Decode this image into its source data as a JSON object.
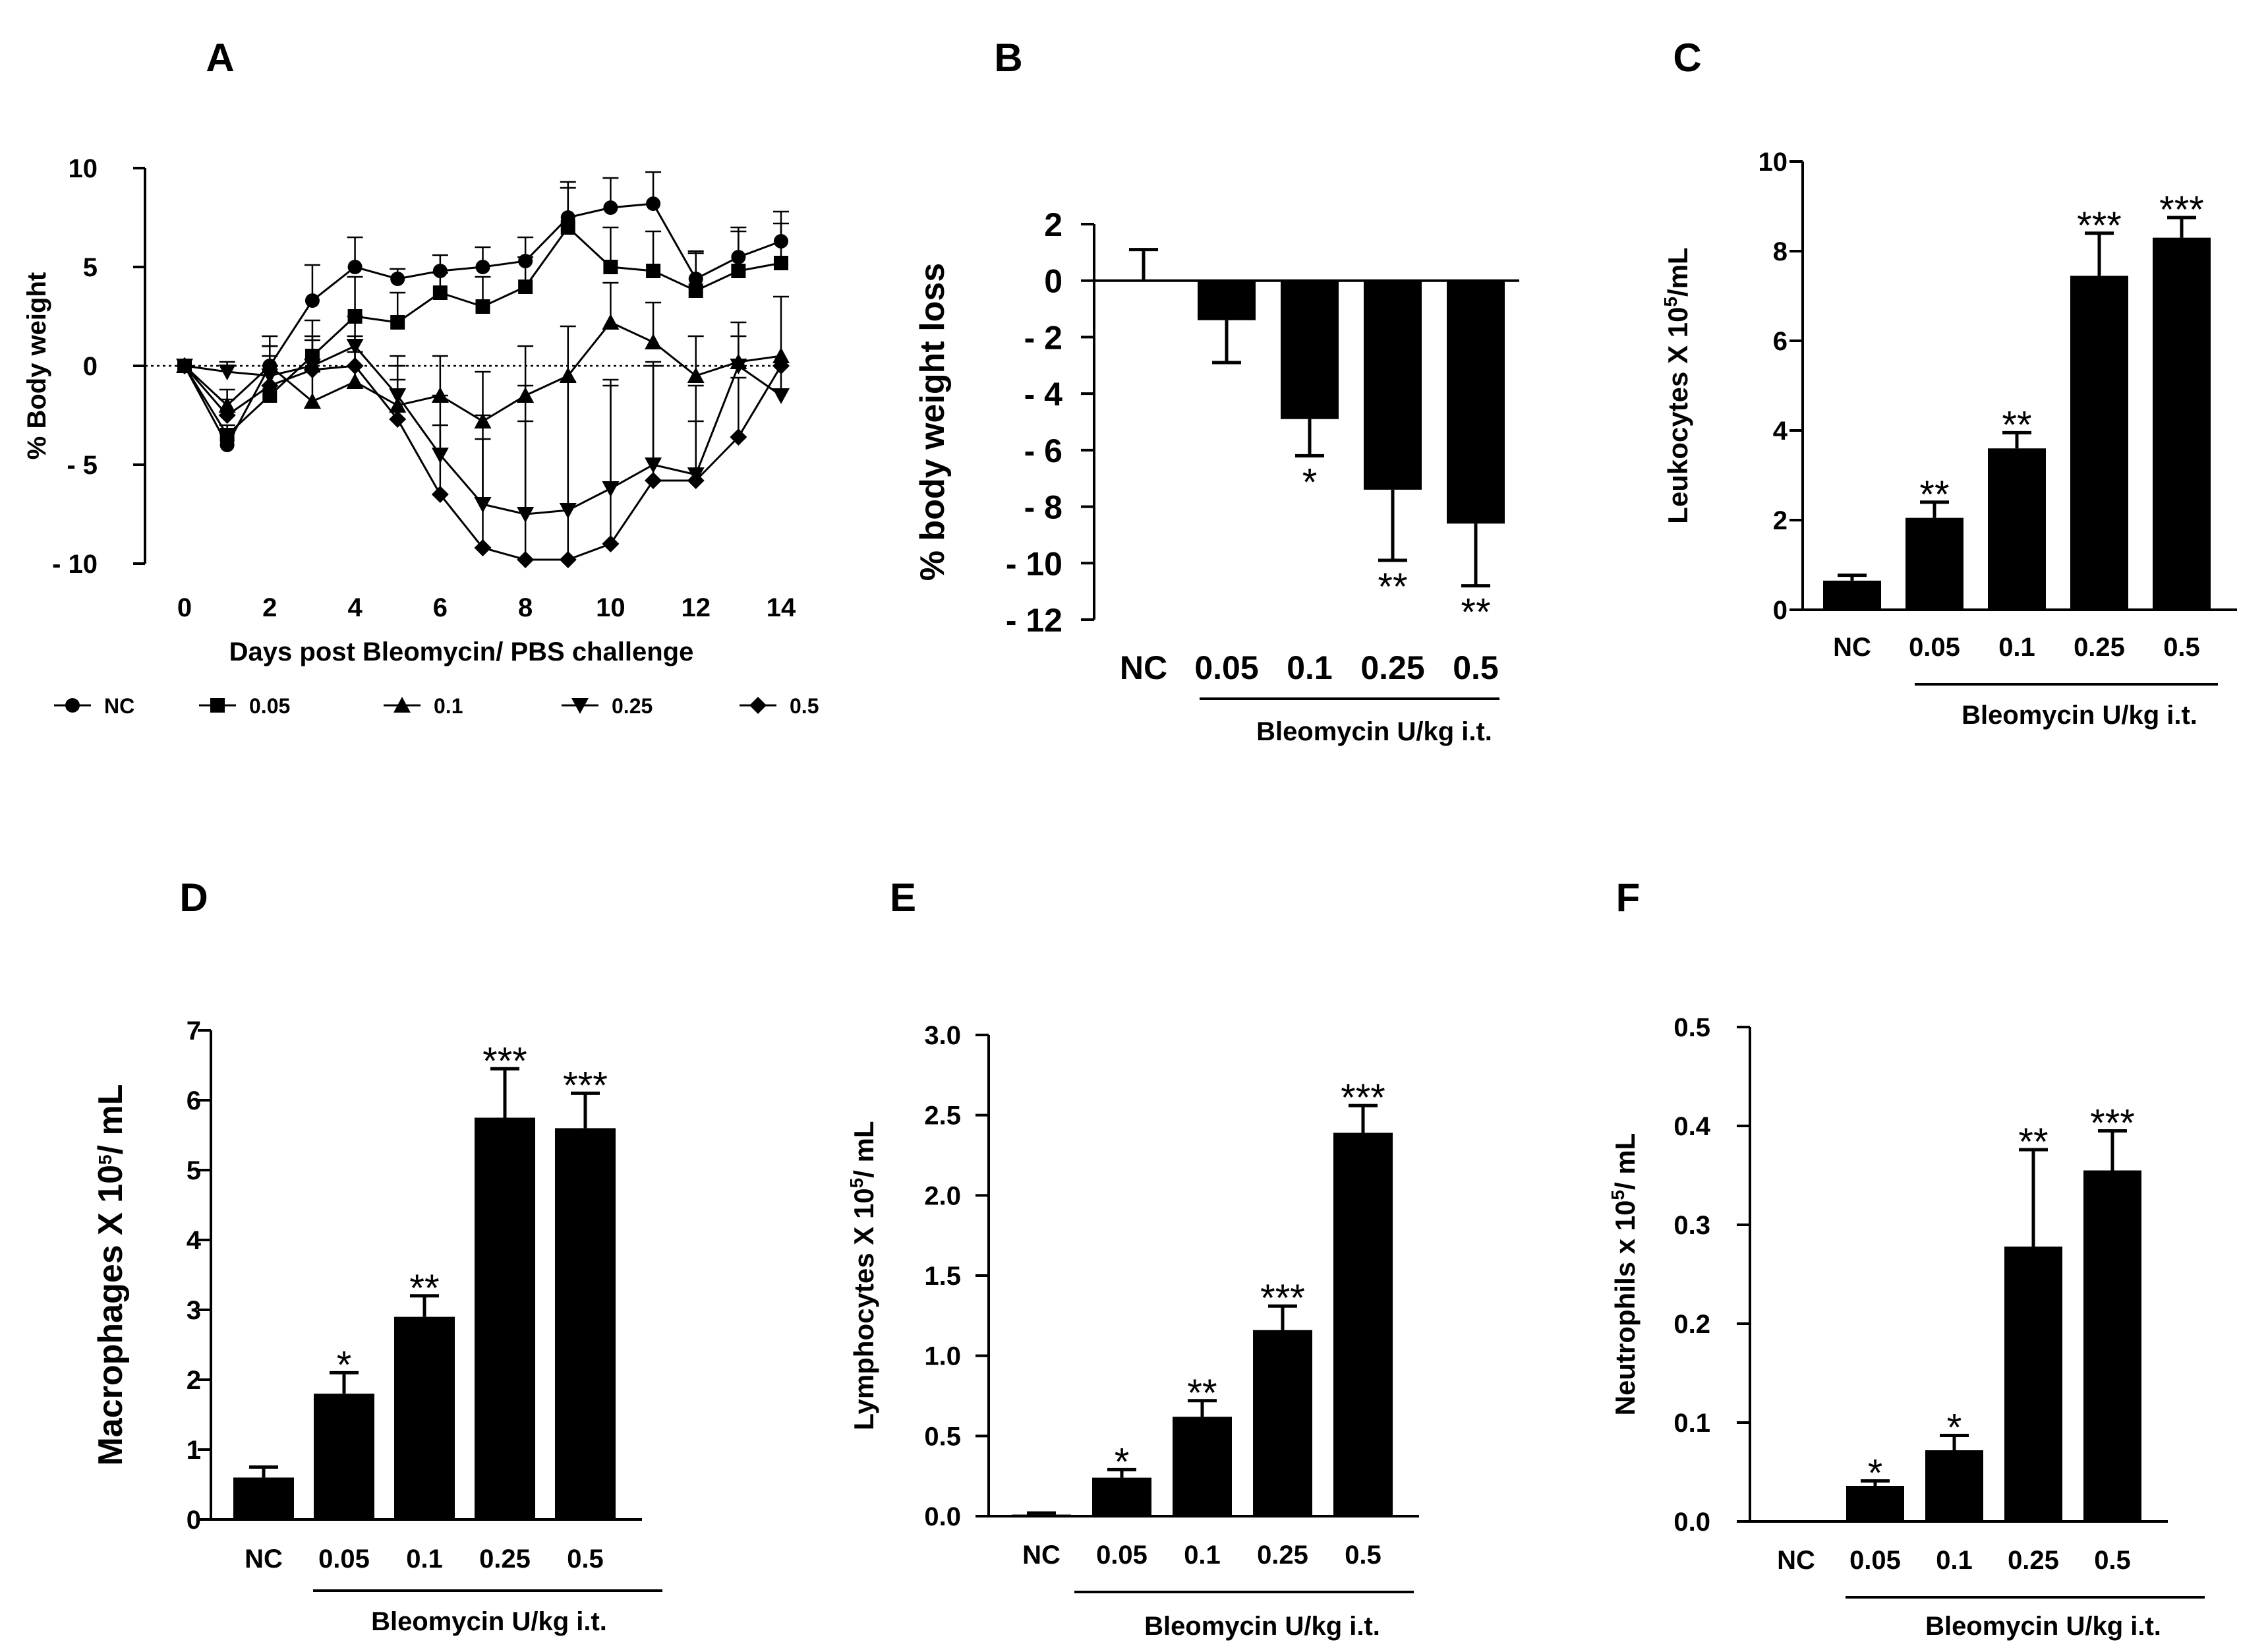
{
  "chart_data": [
    {
      "panel": "A",
      "type": "line",
      "ylabel": "% Body weight",
      "xlabel": "Days post Bleomycin/ PBS challenge",
      "ylim": [
        -10,
        10
      ],
      "xlim": [
        0,
        14
      ],
      "yticks": [
        {
          "v": 10,
          "t": "10"
        },
        {
          "v": 5,
          "t": "5"
        },
        {
          "v": 0,
          "t": "0"
        },
        {
          "v": -5,
          "t": "- 5"
        },
        {
          "v": -10,
          "t": "- 10"
        }
      ],
      "xticks": [
        "0",
        "2",
        "4",
        "6",
        "8",
        "10",
        "12",
        "14"
      ],
      "x": [
        0,
        1,
        2,
        3,
        4,
        5,
        6,
        7,
        8,
        9,
        10,
        11,
        12,
        13,
        14
      ],
      "series": [
        {
          "name": "NC",
          "marker": "circle",
          "values": [
            0,
            -4,
            0,
            3.3,
            5,
            4.4,
            4.8,
            5,
            5.3,
            7.5,
            8,
            8.2,
            4.4,
            5.5,
            6.3
          ],
          "errors": [
            0,
            0.6,
            1,
            1.8,
            1.5,
            0.5,
            0.8,
            1,
            1.2,
            1.8,
            1.5,
            1.6,
            1.3,
            1.5,
            1.5
          ]
        },
        {
          "name": "0.05",
          "marker": "square",
          "values": [
            0,
            -3.5,
            -1.5,
            0.5,
            2.5,
            2.2,
            3.7,
            3,
            4,
            7,
            5,
            4.8,
            3.8,
            4.8,
            5.2
          ],
          "errors": [
            0,
            0.5,
            1.5,
            1.8,
            2,
            1.5,
            1,
            1.5,
            1.5,
            2,
            2,
            2,
            2,
            2,
            2
          ]
        },
        {
          "name": "0.1",
          "marker": "triangle-up",
          "values": [
            0,
            -2,
            0,
            -1.8,
            -0.8,
            -2,
            -1.5,
            -2.8,
            -1.5,
            -0.5,
            2.2,
            1.2,
            -0.5,
            0.2,
            0.5
          ],
          "errors": [
            0,
            0.8,
            1.5,
            1.5,
            1.5,
            2,
            2,
            2.5,
            2.5,
            2.5,
            2,
            2,
            2,
            2,
            3
          ]
        },
        {
          "name": "0.25",
          "marker": "triangle-down",
          "values": [
            0,
            -0.3,
            -0.5,
            0,
            1,
            -1.5,
            -4.5,
            -7,
            -7.5,
            -7.3,
            -6.2,
            -5,
            -5.5,
            0,
            -1.5
          ],
          "errors": [
            0,
            0.5,
            1.5,
            1.5,
            1.5,
            2,
            3,
            4.5,
            6.5,
            6.5,
            5.5,
            5,
            4.5,
            1.5,
            1.5
          ]
        },
        {
          "name": "0.5",
          "marker": "diamond",
          "values": [
            0,
            -2.5,
            -1,
            -0.2,
            0,
            -2.7,
            -6.5,
            -9.2,
            -9.8,
            -9.8,
            -9,
            -5.8,
            -5.8,
            -3.6,
            0
          ],
          "errors": [
            0,
            0.8,
            1.5,
            1.5,
            1.5,
            2,
            3.5,
            5.5,
            7,
            9,
            8,
            6,
            3,
            3,
            0
          ]
        }
      ]
    },
    {
      "panel": "B",
      "type": "bar",
      "ylabel": "% body weight loss",
      "ylim": [
        -12,
        2
      ],
      "yticks": [
        {
          "v": 2,
          "t": "2"
        },
        {
          "v": 0,
          "t": "0"
        },
        {
          "v": -2,
          "t": "- 2"
        },
        {
          "v": -4,
          "t": "- 4"
        },
        {
          "v": -6,
          "t": "- 6"
        },
        {
          "v": -8,
          "t": "- 8"
        },
        {
          "v": -10,
          "t": "- 10"
        },
        {
          "v": -12,
          "t": "- 12"
        }
      ],
      "categories": [
        "NC",
        "0.05",
        "0.1",
        "0.25",
        "0.5"
      ],
      "values": [
        0,
        -1.4,
        -4.9,
        -7.4,
        -8.6
      ],
      "errors": [
        1.1,
        1.5,
        1.3,
        2.5,
        2.2
      ],
      "annotations": [
        "",
        "",
        "*",
        "**",
        "**"
      ],
      "group_label": "Bleomycin U/kg i.t."
    },
    {
      "panel": "C",
      "type": "bar",
      "ylabel": "Leukocytes X 10",
      "ylabel_sup": "5",
      "ylabel_suffix": "/mL",
      "ylim": [
        0,
        10
      ],
      "yticks": [
        {
          "v": 0,
          "t": "0"
        },
        {
          "v": 2,
          "t": "2"
        },
        {
          "v": 4,
          "t": "4"
        },
        {
          "v": 6,
          "t": "6"
        },
        {
          "v": 8,
          "t": "8"
        },
        {
          "v": 10,
          "t": "10"
        }
      ],
      "categories": [
        "NC",
        "0.05",
        "0.1",
        "0.25",
        "0.5"
      ],
      "values": [
        0.65,
        2.05,
        3.6,
        7.45,
        8.3
      ],
      "errors": [
        0.12,
        0.35,
        0.35,
        0.95,
        0.45
      ],
      "annotations": [
        "",
        "**",
        "**",
        "***",
        "***"
      ],
      "group_label": "Bleomycin U/kg i.t."
    },
    {
      "panel": "D",
      "type": "bar",
      "ylabel": "Macrophages  X 10",
      "ylabel_sup": "5",
      "ylabel_suffix": "/ mL",
      "ylim": [
        0,
        7
      ],
      "yticks": [
        {
          "v": 0,
          "t": "0"
        },
        {
          "v": 1,
          "t": "1"
        },
        {
          "v": 2,
          "t": "2"
        },
        {
          "v": 3,
          "t": "3"
        },
        {
          "v": 4,
          "t": "4"
        },
        {
          "v": 5,
          "t": "5"
        },
        {
          "v": 6,
          "t": "6"
        },
        {
          "v": 7,
          "t": "7"
        }
      ],
      "categories": [
        "NC",
        "0.05",
        "0.1",
        "0.25",
        "0.5"
      ],
      "values": [
        0.6,
        1.8,
        2.9,
        5.75,
        5.6
      ],
      "errors": [
        0.15,
        0.3,
        0.3,
        0.7,
        0.5
      ],
      "annotations": [
        "",
        "*",
        "**",
        "***",
        "***"
      ],
      "group_label": "Bleomycin U/kg i.t."
    },
    {
      "panel": "E",
      "type": "bar",
      "ylabel": "Lymphocytes X 10",
      "ylabel_sup": "5",
      "ylabel_suffix": "/ mL",
      "ylim": [
        0,
        3
      ],
      "yticks": [
        {
          "v": 0,
          "t": "0.0"
        },
        {
          "v": 0.5,
          "t": "0.5"
        },
        {
          "v": 1,
          "t": "1.0"
        },
        {
          "v": 1.5,
          "t": "1.5"
        },
        {
          "v": 2,
          "t": "2.0"
        },
        {
          "v": 2.5,
          "t": "2.5"
        },
        {
          "v": 3,
          "t": "3.0"
        }
      ],
      "categories": [
        "NC",
        "0.05",
        "0.1",
        "0.25",
        "0.5"
      ],
      "values": [
        0.01,
        0.24,
        0.62,
        1.16,
        2.39
      ],
      "errors": [
        0.01,
        0.05,
        0.1,
        0.15,
        0.17
      ],
      "annotations": [
        "",
        "*",
        "**",
        "***",
        "***"
      ],
      "group_label": "Bleomycin U/kg i.t."
    },
    {
      "panel": "F",
      "type": "bar",
      "ylabel": "Neutrophils x 10",
      "ylabel_sup": "5",
      "ylabel_suffix": "/ mL",
      "ylim": [
        0,
        0.5
      ],
      "yticks": [
        {
          "v": 0,
          "t": "0.0"
        },
        {
          "v": 0.1,
          "t": "0.1"
        },
        {
          "v": 0.2,
          "t": "0.2"
        },
        {
          "v": 0.3,
          "t": "0.3"
        },
        {
          "v": 0.4,
          "t": "0.4"
        },
        {
          "v": 0.5,
          "t": "0.5"
        }
      ],
      "categories": [
        "NC",
        "0.05",
        "0.1",
        "0.25",
        "0.5"
      ],
      "values": [
        0,
        0.036,
        0.072,
        0.278,
        0.355
      ],
      "errors": [
        0,
        0.005,
        0.015,
        0.098,
        0.04
      ],
      "annotations": [
        "",
        "*",
        "*",
        "**",
        "***"
      ],
      "group_label": "Bleomycin U/kg i.t."
    }
  ]
}
